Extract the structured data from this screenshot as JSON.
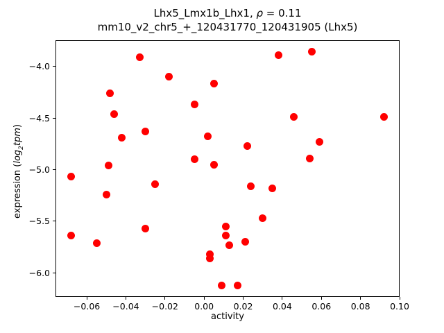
{
  "title": {
    "line1_prefix": "Lhx5_Lmx1b_Lhx1, ",
    "line1_rho": "ρ",
    "line1_suffix": " = 0.11",
    "line2": "mm10_v2_chr5_+_120431770_120431905 (Lhx5)"
  },
  "axes": {
    "xlabel": "activity",
    "ylabel_prefix": "expression (",
    "ylabel_log": "log",
    "ylabel_sub": "2",
    "ylabel_tpm": "tpm",
    "ylabel_suffix": ")"
  },
  "chart_data": {
    "type": "scatter",
    "title": "Lhx5_Lmx1b_Lhx1, ρ = 0.11",
    "subtitle": "mm10_v2_chr5_+_120431770_120431905 (Lhx5)",
    "xlabel": "activity",
    "ylabel": "expression (log2 tpm)",
    "legend_position": null,
    "grid": false,
    "marker_color": "#ff0000",
    "axis_color": "#000000",
    "background_color": "#ffffff",
    "xlim": [
      -0.076,
      0.1
    ],
    "ylim": [
      -6.233,
      -3.747
    ],
    "xticks": [
      -0.06,
      -0.04,
      -0.02,
      0.0,
      0.02,
      0.04,
      0.06,
      0.08,
      0.1
    ],
    "xtick_labels": [
      "−0.06",
      "−0.04",
      "−0.02",
      "0.00",
      "0.02",
      "0.04",
      "0.06",
      "0.08",
      "0.10"
    ],
    "yticks": [
      -4.0,
      -4.5,
      -5.0,
      -5.5,
      -6.0
    ],
    "ytick_labels": [
      "−4.0",
      "−4.5",
      "−5.0",
      "−5.5",
      "−6.0"
    ],
    "points": [
      [
        -0.033,
        -3.91
      ],
      [
        -0.018,
        -4.1
      ],
      [
        0.005,
        -4.17
      ],
      [
        -0.048,
        -4.26
      ],
      [
        -0.005,
        -4.37
      ],
      [
        -0.046,
        -4.46
      ],
      [
        -0.03,
        -4.63
      ],
      [
        -0.042,
        -4.69
      ],
      [
        0.002,
        -4.68
      ],
      [
        -0.005,
        -4.9
      ],
      [
        -0.049,
        -4.96
      ],
      [
        0.005,
        -4.95
      ],
      [
        0.038,
        -3.89
      ],
      [
        0.055,
        -3.86
      ],
      [
        0.046,
        -4.49
      ],
      [
        0.092,
        -4.49
      ],
      [
        0.022,
        -4.77
      ],
      [
        0.059,
        -4.73
      ],
      [
        0.054,
        -4.89
      ],
      [
        -0.068,
        -5.07
      ],
      [
        -0.025,
        -5.14
      ],
      [
        -0.05,
        -5.24
      ],
      [
        -0.068,
        -5.64
      ],
      [
        -0.055,
        -5.71
      ],
      [
        -0.03,
        -5.57
      ],
      [
        0.024,
        -5.16
      ],
      [
        0.035,
        -5.18
      ],
      [
        0.03,
        -5.47
      ],
      [
        0.011,
        -5.55
      ],
      [
        0.011,
        -5.64
      ],
      [
        0.013,
        -5.73
      ],
      [
        0.021,
        -5.7
      ],
      [
        0.003,
        -5.82
      ],
      [
        0.003,
        -5.86
      ],
      [
        0.009,
        -6.12
      ],
      [
        0.017,
        -6.12
      ]
    ]
  }
}
